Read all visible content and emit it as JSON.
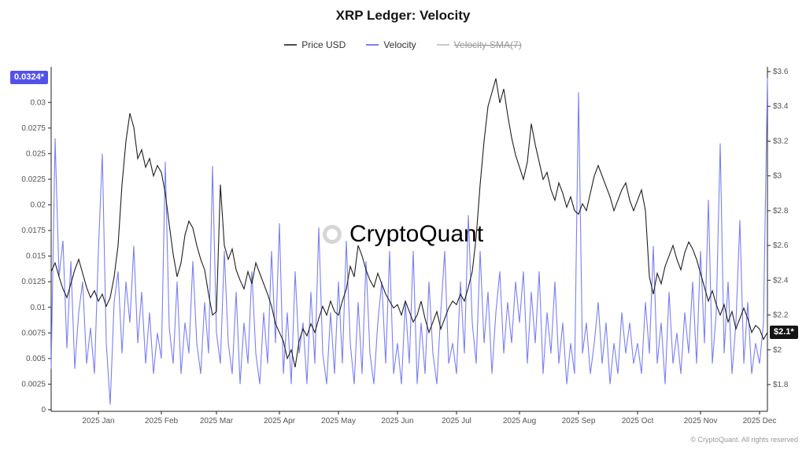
{
  "title": "XRP Ledger: Velocity",
  "legend": [
    {
      "label": "Price USD",
      "color": "#4a4a4a",
      "active": true
    },
    {
      "label": "Velocity",
      "color": "#7b7ff2",
      "active": true
    },
    {
      "label": "Velocity-SMA(7)",
      "color": "#c9c9c9",
      "active": false
    }
  ],
  "badges": {
    "left": "0.0324*",
    "right": "$2.1*"
  },
  "watermark": "CryptoQuant",
  "footer": "© CryptoQuant. All rights reserved",
  "colors": {
    "price_line": "#1f1f1f",
    "velocity_line": "#7b7ff2",
    "badge_left_bg": "#5352e8",
    "badge_right_bg": "#141414",
    "axis_line": "#222222",
    "tick_text": "#555555",
    "watermark": "#d6d6d6"
  },
  "chart_data": {
    "type": "line",
    "title": "XRP Ledger: Velocity",
    "x_ticks": [
      {
        "label": "2025 Jan",
        "index": 12
      },
      {
        "label": "2025 Feb",
        "index": 28
      },
      {
        "label": "2025 Mar",
        "index": 42
      },
      {
        "label": "2025 Apr",
        "index": 58
      },
      {
        "label": "2025 May",
        "index": 73
      },
      {
        "label": "2025 Jun",
        "index": 88
      },
      {
        "label": "2025 Jul",
        "index": 103
      },
      {
        "label": "2025 Aug",
        "index": 119
      },
      {
        "label": "2025 Sep",
        "index": 134
      },
      {
        "label": "2025 Oct",
        "index": 149
      },
      {
        "label": "2025 Nov",
        "index": 165
      },
      {
        "label": "2025 Dec",
        "index": 180
      }
    ],
    "left_axis": {
      "name": "Velocity",
      "min": 0,
      "max": 0.0324,
      "tick_values": [
        0,
        0.0025,
        0.005,
        0.0075,
        0.01,
        0.0125,
        0.015,
        0.0175,
        0.02,
        0.0225,
        0.025,
        0.0275,
        0.03
      ],
      "tick_labels": [
        "0",
        "0.0025",
        "0.005",
        "0.0075",
        "0.01",
        "0.0125",
        "0.015",
        "0.0175",
        "0.02",
        "0.0225",
        "0.025",
        "0.0275",
        "0.03"
      ]
    },
    "right_axis": {
      "name": "Price USD",
      "min": 1.8,
      "max": 3.6,
      "tick_values": [
        1.8,
        2.0,
        2.2,
        2.4,
        2.6,
        2.8,
        3.0,
        3.2,
        3.4,
        3.6
      ],
      "tick_labels": [
        "$1.8",
        "$2",
        "$2.2",
        "$2.4",
        "$2.6",
        "$2.8",
        "$3",
        "$3.2",
        "$3.4",
        "$3.6"
      ]
    },
    "series": [
      {
        "name": "Price USD",
        "axis": "right",
        "color": "#1f1f1f",
        "values": [
          2.45,
          2.5,
          2.42,
          2.35,
          2.3,
          2.38,
          2.46,
          2.52,
          2.44,
          2.36,
          2.3,
          2.34,
          2.28,
          2.32,
          2.25,
          2.3,
          2.42,
          2.6,
          2.95,
          3.2,
          3.36,
          3.28,
          3.1,
          3.15,
          3.05,
          3.1,
          3.0,
          3.06,
          3.02,
          2.9,
          2.72,
          2.55,
          2.42,
          2.5,
          2.66,
          2.74,
          2.7,
          2.6,
          2.52,
          2.46,
          2.32,
          2.2,
          2.22,
          2.95,
          2.6,
          2.52,
          2.58,
          2.46,
          2.4,
          2.35,
          2.45,
          2.38,
          2.5,
          2.44,
          2.38,
          2.32,
          2.25,
          2.15,
          2.1,
          2.05,
          1.95,
          2.0,
          1.9,
          2.05,
          2.12,
          2.08,
          2.15,
          2.1,
          2.18,
          2.25,
          2.2,
          2.28,
          2.22,
          2.2,
          2.28,
          2.35,
          2.48,
          2.42,
          2.6,
          2.54,
          2.46,
          2.4,
          2.36,
          2.44,
          2.38,
          2.32,
          2.28,
          2.24,
          2.26,
          2.2,
          2.28,
          2.22,
          2.16,
          2.2,
          2.28,
          2.18,
          2.1,
          2.16,
          2.22,
          2.12,
          2.18,
          2.24,
          2.28,
          2.26,
          2.32,
          2.28,
          2.36,
          2.45,
          2.65,
          2.95,
          3.2,
          3.4,
          3.48,
          3.56,
          3.42,
          3.5,
          3.35,
          3.22,
          3.12,
          3.05,
          2.98,
          3.08,
          3.3,
          3.18,
          3.08,
          2.98,
          3.02,
          2.92,
          2.86,
          2.96,
          2.9,
          2.82,
          2.88,
          2.8,
          2.78,
          2.84,
          2.8,
          2.9,
          3.0,
          3.06,
          3.0,
          2.94,
          2.88,
          2.8,
          2.86,
          2.92,
          2.96,
          2.86,
          2.8,
          2.86,
          2.92,
          2.8,
          2.42,
          2.32,
          2.44,
          2.38,
          2.48,
          2.54,
          2.6,
          2.52,
          2.46,
          2.56,
          2.62,
          2.58,
          2.52,
          2.44,
          2.36,
          2.28,
          2.34,
          2.26,
          2.2,
          2.26,
          2.16,
          2.22,
          2.12,
          2.18,
          2.24,
          2.18,
          2.1,
          2.14,
          2.12,
          2.06,
          2.1
        ]
      },
      {
        "name": "Velocity",
        "axis": "left",
        "color": "#7b7ff2",
        "values": [
          0.004,
          0.0265,
          0.013,
          0.0165,
          0.006,
          0.0145,
          0.004,
          0.0095,
          0.0125,
          0.0045,
          0.008,
          0.0035,
          0.0155,
          0.025,
          0.0065,
          0.0005,
          0.0105,
          0.0135,
          0.0055,
          0.0125,
          0.0085,
          0.016,
          0.0065,
          0.0115,
          0.0045,
          0.0095,
          0.0035,
          0.0075,
          0.005,
          0.0242,
          0.008,
          0.0045,
          0.0125,
          0.0035,
          0.0085,
          0.0055,
          0.0145,
          0.0065,
          0.0035,
          0.0105,
          0.0055,
          0.0238,
          0.0075,
          0.0045,
          0.0155,
          0.0065,
          0.0035,
          0.0115,
          0.0025,
          0.0085,
          0.0045,
          0.0135,
          0.0055,
          0.0025,
          0.0095,
          0.0045,
          0.0155,
          0.0065,
          0.0182,
          0.0035,
          0.0095,
          0.0025,
          0.0135,
          0.0055,
          0.0085,
          0.0025,
          0.0115,
          0.0045,
          0.0178,
          0.0055,
          0.0025,
          0.0095,
          0.0035,
          0.0125,
          0.0045,
          0.0165,
          0.0065,
          0.0025,
          0.0105,
          0.0035,
          0.0145,
          0.0055,
          0.0025,
          0.0085,
          0.0125,
          0.0045,
          0.0155,
          0.0035,
          0.0065,
          0.0025,
          0.0105,
          0.0045,
          0.0155,
          0.0025,
          0.0085,
          0.0035,
          0.0125,
          0.0055,
          0.0025,
          0.0095,
          0.0155,
          0.0045,
          0.0065,
          0.0035,
          0.0125,
          0.0055,
          0.019,
          0.0085,
          0.0045,
          0.0155,
          0.0065,
          0.0115,
          0.0035,
          0.0095,
          0.0135,
          0.0055,
          0.0105,
          0.0065,
          0.0125,
          0.0085,
          0.0135,
          0.0045,
          0.0115,
          0.0065,
          0.0135,
          0.0035,
          0.0095,
          0.0055,
          0.0125,
          0.0045,
          0.0085,
          0.0025,
          0.0065,
          0.0035,
          0.031,
          0.0055,
          0.0085,
          0.0035,
          0.0065,
          0.0105,
          0.0045,
          0.0085,
          0.0025,
          0.0065,
          0.0035,
          0.0095,
          0.0055,
          0.0085,
          0.0045,
          0.0065,
          0.0035,
          0.0105,
          0.0055,
          0.016,
          0.0045,
          0.0085,
          0.0025,
          0.0115,
          0.0045,
          0.0075,
          0.0035,
          0.0095,
          0.0055,
          0.0125,
          0.0045,
          0.0155,
          0.0065,
          0.0205,
          0.0045,
          0.0095,
          0.026,
          0.0055,
          0.0125,
          0.0035,
          0.0085,
          0.0185,
          0.0045,
          0.0105,
          0.0035,
          0.0065,
          0.0045,
          0.0085,
          0.0324
        ]
      }
    ],
    "hidden_series": [
      "Velocity-SMA(7)"
    ],
    "last_values": {
      "velocity": 0.0324,
      "price_usd": 2.1
    }
  }
}
